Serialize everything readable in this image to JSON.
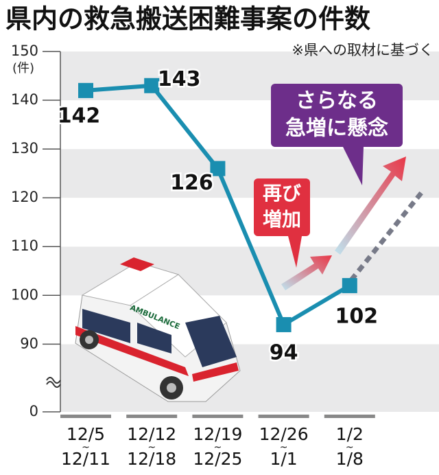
{
  "chart_data": {
    "type": "line",
    "title": "県内の救急搬送困難事案の件数",
    "subtitle": "※県への取材に基づく",
    "y_label": "(件)",
    "categories": [
      [
        "12/5",
        "~",
        "12/11"
      ],
      [
        "12/12",
        "~",
        "12/18"
      ],
      [
        "12/19",
        "~",
        "12/25"
      ],
      [
        "12/26",
        "~",
        "1/1"
      ],
      [
        "1/2",
        "~",
        "1/8"
      ]
    ],
    "values": [
      142,
      143,
      126,
      94,
      102
    ],
    "color": "#1a8eb0",
    "ylim": [
      84,
      150
    ],
    "yticks": [
      0,
      90,
      100,
      110,
      120,
      130,
      140,
      150
    ],
    "axis_break": true,
    "annotations": [
      [
        "再び",
        "増加"
      ],
      [
        "さらなる",
        "急増に懸念"
      ]
    ]
  }
}
